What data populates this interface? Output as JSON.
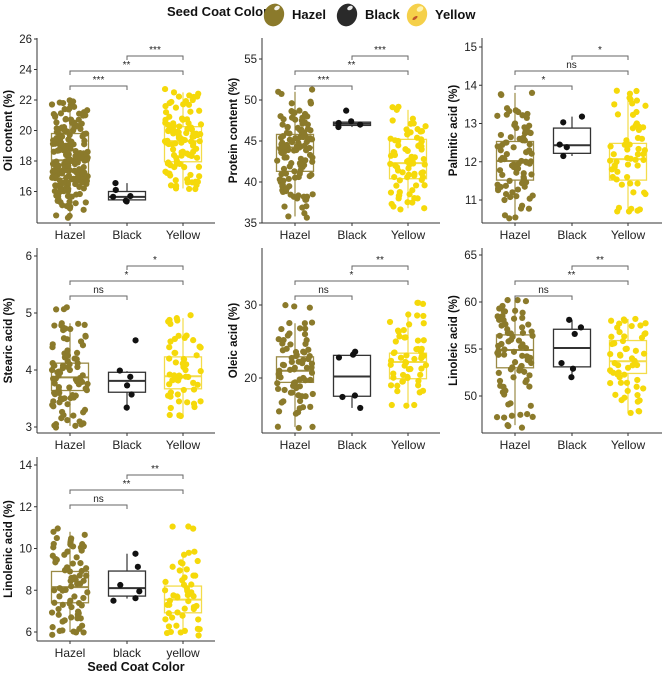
{
  "legend": {
    "title": "Seed Coat Color",
    "items": [
      {
        "label": "Hazel",
        "color": "#8B7A2B",
        "icon": "hazel-seed-icon"
      },
      {
        "label": "Black",
        "color": "#2A2A2A",
        "icon": "black-seed-icon"
      },
      {
        "label": "Yellow",
        "color": "#F2D21B",
        "icon": "yellow-seed-icon"
      }
    ]
  },
  "colors": {
    "Hazel": {
      "point": "#8B7A2B",
      "box": "#9A8A45"
    },
    "Black": {
      "point": "#111111",
      "box": "#333333"
    },
    "Yellow": {
      "point": "#F5D90A",
      "box": "#F3DC4A"
    },
    "bracket": "#666666",
    "axis": "#333333"
  },
  "chart_data": [
    {
      "type": "box",
      "id": "oil",
      "ylabel": "Oil content (%)",
      "xlabel": "",
      "categories": [
        "Hazel",
        "Black",
        "Yellow"
      ],
      "ylim": [
        14,
        26
      ],
      "yticks": [
        16,
        18,
        20,
        22,
        24,
        26
      ],
      "boxes": [
        {
          "group": "Hazel",
          "q1": 16.85,
          "median": 18.05,
          "q3": 19.8,
          "whisker_low": 14.4,
          "whisker_high": 21.9
        },
        {
          "group": "Black",
          "q1": 15.45,
          "median": 15.65,
          "q3": 16.0,
          "whisker_low": 15.4,
          "whisker_high": 16.55
        },
        {
          "group": "Yellow",
          "q1": 17.95,
          "median": 19.3,
          "q3": 20.25,
          "whisker_low": 16.2,
          "whisker_high": 22.5
        }
      ],
      "points": {
        "Hazel": [
          14.4,
          15.0,
          15.1,
          15.3,
          15.5,
          15.7,
          15.8,
          16.0,
          16.1,
          16.2,
          16.3,
          16.4,
          16.5,
          16.6,
          16.7,
          16.7,
          16.8,
          16.9,
          16.9,
          17.0,
          17.1,
          17.1,
          17.2,
          17.3,
          17.4,
          17.5,
          17.6,
          17.7,
          17.7,
          17.8,
          17.9,
          18.0,
          18.0,
          18.1,
          18.1,
          18.2,
          18.3,
          18.4,
          18.5,
          18.6,
          18.7,
          18.8,
          18.9,
          19.0,
          19.1,
          19.2,
          19.3,
          19.4,
          19.5,
          19.6,
          19.7,
          19.8,
          19.9,
          20.0,
          20.1,
          20.3,
          20.5,
          20.7,
          20.9,
          21.0,
          21.2,
          21.4,
          21.6,
          21.8,
          21.9
        ],
        "Black": [
          15.35,
          15.4,
          15.65,
          15.7,
          16.1,
          16.55
        ],
        "Yellow": [
          16.2,
          16.4,
          16.6,
          16.8,
          17.0,
          17.3,
          17.6,
          17.9,
          18.0,
          18.2,
          18.4,
          18.6,
          18.8,
          19.0,
          19.2,
          19.3,
          19.4,
          19.5,
          19.6,
          19.7,
          19.8,
          19.9,
          20.0,
          20.1,
          20.2,
          20.3,
          20.5,
          20.7,
          20.9,
          21.2,
          21.5,
          21.8,
          22.0,
          22.3,
          22.5
        ]
      },
      "comparisons": [
        {
          "from": "Hazel",
          "to": "Black",
          "label": "***"
        },
        {
          "from": "Hazel",
          "to": "Yellow",
          "label": "**"
        },
        {
          "from": "Black",
          "to": "Yellow",
          "label": "***"
        }
      ]
    },
    {
      "type": "box",
      "id": "protein",
      "ylabel": "Protein content (%)",
      "xlabel": "",
      "categories": [
        "Hazel",
        "Black",
        "Yellow"
      ],
      "ylim": [
        35,
        57
      ],
      "yticks": [
        35,
        40,
        45,
        50,
        55
      ],
      "boxes": [
        {
          "group": "Hazel",
          "q1": 41.3,
          "median": 44.2,
          "q3": 45.8,
          "whisker_low": 35.8,
          "whisker_high": 51.0
        },
        {
          "group": "Black",
          "q1": 46.9,
          "median": 47.1,
          "q3": 47.3,
          "whisker_low": 46.7,
          "whisker_high": 47.4
        },
        {
          "group": "Yellow",
          "q1": 40.4,
          "median": 42.3,
          "q3": 45.2,
          "whisker_low": 36.8,
          "whisker_high": 48.8
        }
      ],
      "points": {
        "Hazel": [
          35.8,
          37.0,
          38.0,
          38.2,
          38.5,
          39.0,
          39.5,
          40.0,
          40.3,
          40.6,
          41.0,
          41.3,
          41.6,
          42.0,
          42.3,
          42.6,
          43.0,
          43.3,
          43.6,
          43.9,
          44.1,
          44.2,
          44.4,
          44.6,
          44.8,
          45.0,
          45.2,
          45.4,
          45.6,
          45.8,
          46.0,
          46.3,
          46.6,
          47.0,
          47.3,
          47.6,
          48.0,
          48.3,
          48.7,
          49.6,
          51.0
        ],
        "Black": [
          46.7,
          47.0,
          47.2,
          47.4,
          48.7
        ],
        "Yellow": [
          36.8,
          37.5,
          38.0,
          38.5,
          39.0,
          39.6,
          40.2,
          40.6,
          41.0,
          41.4,
          41.8,
          42.2,
          42.5,
          42.8,
          43.2,
          43.6,
          44.0,
          44.5,
          45.0,
          45.4,
          45.8,
          46.2,
          46.8,
          47.5,
          48.8
        ]
      },
      "comparisons": [
        {
          "from": "Hazel",
          "to": "Black",
          "label": "***"
        },
        {
          "from": "Hazel",
          "to": "Yellow",
          "label": "**"
        },
        {
          "from": "Black",
          "to": "Yellow",
          "label": "***"
        }
      ]
    },
    {
      "type": "box",
      "id": "palmitic",
      "ylabel": "Palmitic acid (%)",
      "xlabel": "",
      "categories": [
        "Hazel",
        "Black",
        "Yellow"
      ],
      "ylim": [
        10.4,
        15.2
      ],
      "yticks": [
        11,
        12,
        13,
        14,
        15
      ],
      "boxes": [
        {
          "group": "Hazel",
          "q1": 11.52,
          "median": 12.02,
          "q3": 12.53,
          "whisker_low": 10.6,
          "whisker_high": 13.8
        },
        {
          "group": "Black",
          "q1": 12.22,
          "median": 12.43,
          "q3": 12.88,
          "whisker_low": 12.15,
          "whisker_high": 13.18
        },
        {
          "group": "Yellow",
          "q1": 11.52,
          "median": 12.07,
          "q3": 12.48,
          "whisker_low": 10.7,
          "whisker_high": 13.78
        }
      ],
      "points": {
        "Hazel": [
          10.6,
          10.85,
          11.0,
          11.1,
          11.2,
          11.3,
          11.4,
          11.5,
          11.6,
          11.7,
          11.8,
          11.9,
          12.0,
          12.05,
          12.1,
          12.2,
          12.3,
          12.4,
          12.5,
          12.6,
          12.7,
          12.8,
          12.9,
          13.0,
          13.2,
          13.3,
          13.4,
          13.8
        ],
        "Black": [
          12.15,
          12.38,
          12.45,
          13.03,
          13.18
        ],
        "Yellow": [
          10.7,
          10.72,
          11.2,
          11.4,
          11.6,
          11.8,
          11.9,
          12.0,
          12.1,
          12.2,
          12.3,
          12.4,
          12.6,
          12.9,
          13.0,
          13.3,
          13.5,
          13.6,
          13.78
        ]
      },
      "comparisons": [
        {
          "from": "Hazel",
          "to": "Black",
          "label": "*"
        },
        {
          "from": "Hazel",
          "to": "Yellow",
          "label": "ns"
        },
        {
          "from": "Black",
          "to": "Yellow",
          "label": "*"
        }
      ]
    },
    {
      "type": "box",
      "id": "stearic",
      "ylabel": "Stearic acid (%)",
      "xlabel": "",
      "categories": [
        "Hazel",
        "Black",
        "Yellow"
      ],
      "ylim": [
        2.95,
        6.05
      ],
      "yticks": [
        3,
        4,
        5,
        6
      ],
      "boxes": [
        {
          "group": "Hazel",
          "q1": 3.64,
          "median": 3.87,
          "q3": 4.12,
          "whisker_low": 3.02,
          "whisker_high": 4.82
        },
        {
          "group": "Black",
          "q1": 3.61,
          "median": 3.81,
          "q3": 3.96,
          "whisker_low": 3.34,
          "whisker_high": 3.98
        },
        {
          "group": "Yellow",
          "q1": 3.67,
          "median": 3.89,
          "q3": 4.23,
          "whisker_low": 3.21,
          "whisker_high": 4.91
        }
      ],
      "points": {
        "Hazel": [
          3.02,
          3.05,
          3.12,
          3.2,
          3.3,
          3.4,
          3.45,
          3.5,
          3.55,
          3.6,
          3.65,
          3.7,
          3.75,
          3.8,
          3.85,
          3.9,
          3.95,
          4.0,
          4.05,
          4.1,
          4.15,
          4.2,
          4.3,
          4.4,
          4.5,
          4.6,
          4.7,
          4.78,
          4.82,
          5.1
        ],
        "Black": [
          3.34,
          3.57,
          3.73,
          3.88,
          3.99,
          4.52
        ],
        "Yellow": [
          3.21,
          3.35,
          3.45,
          3.55,
          3.65,
          3.75,
          3.82,
          3.88,
          3.92,
          4.0,
          4.1,
          4.2,
          4.3,
          4.4,
          4.5,
          4.6,
          4.85,
          4.91
        ]
      },
      "comparisons": [
        {
          "from": "Hazel",
          "to": "Black",
          "label": "ns"
        },
        {
          "from": "Hazel",
          "to": "Yellow",
          "label": "*"
        },
        {
          "from": "Black",
          "to": "Yellow",
          "label": "*"
        }
      ]
    },
    {
      "type": "box",
      "id": "oleic",
      "ylabel": "Oleic acid (%)",
      "xlabel": "",
      "categories": [
        "Hazel",
        "Black",
        "Yellow"
      ],
      "ylim": [
        12.5,
        38
      ],
      "yticks": [
        20,
        30
      ],
      "boxes": [
        {
          "group": "Hazel",
          "q1": 19.4,
          "median": 21.0,
          "q3": 22.9,
          "whisker_low": 13.3,
          "whisker_high": 27.5
        },
        {
          "group": "Black",
          "q1": 17.5,
          "median": 20.2,
          "q3": 23.1,
          "whisker_low": 15.9,
          "whisker_high": 23.6
        },
        {
          "group": "Yellow",
          "q1": 19.9,
          "median": 22.2,
          "q3": 23.4,
          "whisker_low": 16.3,
          "whisker_high": 28.6
        }
      ],
      "points": {
        "Hazel": [
          13.3,
          15.3,
          16.0,
          16.8,
          17.5,
          18.0,
          18.5,
          19.0,
          19.4,
          19.8,
          20.2,
          20.6,
          21.0,
          21.4,
          21.8,
          22.2,
          22.6,
          23.0,
          23.5,
          24.0,
          24.6,
          25.2,
          26.0,
          26.8,
          27.5,
          29.8
        ],
        "Black": [
          15.9,
          17.4,
          17.6,
          22.8,
          23.2,
          23.6
        ],
        "Yellow": [
          16.3,
          18.2,
          19.0,
          19.5,
          20.0,
          20.6,
          21.2,
          21.8,
          22.2,
          22.6,
          23.0,
          23.5,
          24.0,
          25.0,
          25.7,
          26.5,
          27.5,
          28.5,
          30.3
        ]
      },
      "comparisons": [
        {
          "from": "Hazel",
          "to": "Black",
          "label": "ns"
        },
        {
          "from": "Hazel",
          "to": "Yellow",
          "label": "*"
        },
        {
          "from": "Black",
          "to": "Yellow",
          "label": "**"
        }
      ]
    },
    {
      "type": "box",
      "id": "linoleic",
      "ylabel": "Linoleic acid (%)",
      "xlabel": "",
      "categories": [
        "Hazel",
        "Black",
        "Yellow"
      ],
      "ylim": [
        46,
        65.5
      ],
      "yticks": [
        50,
        55,
        60,
        65
      ],
      "boxes": [
        {
          "group": "Hazel",
          "q1": 53.0,
          "median": 54.9,
          "q3": 56.5,
          "whisker_low": 46.9,
          "whisker_high": 60.2
        },
        {
          "group": "Black",
          "q1": 53.1,
          "median": 55.1,
          "q3": 57.1,
          "whisker_low": 52.0,
          "whisker_high": 58.1
        },
        {
          "group": "Yellow",
          "q1": 52.4,
          "median": 53.7,
          "q3": 55.9,
          "whisker_low": 48.2,
          "whisker_high": 58.2
        }
      ],
      "points": {
        "Hazel": [
          46.9,
          47.7,
          48.0,
          49.1,
          50.4,
          51.0,
          51.6,
          52.2,
          52.7,
          53.2,
          53.6,
          54.0,
          54.4,
          54.8,
          55.1,
          55.5,
          55.9,
          56.3,
          56.7,
          57.1,
          57.6,
          58.1,
          58.5,
          59.0,
          59.3,
          60.2
        ],
        "Black": [
          52.0,
          52.9,
          53.5,
          56.6,
          57.3,
          58.1
        ],
        "Yellow": [
          48.2,
          49.4,
          50.1,
          50.8,
          51.4,
          52.0,
          52.5,
          53.0,
          53.5,
          54.0,
          54.5,
          55.0,
          55.6,
          56.2,
          56.8,
          57.5,
          58.0,
          58.2
        ]
      },
      "comparisons": [
        {
          "from": "Hazel",
          "to": "Black",
          "label": "ns"
        },
        {
          "from": "Hazel",
          "to": "Yellow",
          "label": "**"
        },
        {
          "from": "Black",
          "to": "Yellow",
          "label": "**"
        }
      ]
    },
    {
      "type": "box",
      "id": "linolenic",
      "ylabel": "Linolenic acid (%)",
      "xlabel": "Seed Coat Color",
      "categories": [
        "Hazel",
        "black",
        "yellow"
      ],
      "ylim": [
        5.8,
        14.3
      ],
      "yticks": [
        6,
        8,
        10,
        12,
        14
      ],
      "boxes": [
        {
          "group": "Hazel",
          "q1": 7.4,
          "median": 8.15,
          "q3": 8.9,
          "whisker_low": 6.0,
          "whisker_high": 10.8
        },
        {
          "group": "Black",
          "q1": 7.72,
          "median": 8.1,
          "q3": 8.92,
          "whisker_low": 7.6,
          "whisker_high": 9.75
        },
        {
          "group": "Yellow",
          "q1": 6.92,
          "median": 7.55,
          "q3": 8.2,
          "whisker_low": 5.95,
          "whisker_high": 9.75
        }
      ],
      "points": {
        "Hazel": [
          5.98,
          6.02,
          6.3,
          6.5,
          6.7,
          6.9,
          7.1,
          7.3,
          7.5,
          7.7,
          7.9,
          8.1,
          8.3,
          8.5,
          8.7,
          8.9,
          9.1,
          9.3,
          9.5,
          9.7,
          9.9,
          10.1,
          10.3,
          10.5,
          10.8
        ],
        "Black": [
          7.5,
          7.62,
          7.95,
          8.25,
          9.12,
          9.75
        ],
        "Yellow": [
          5.95,
          5.98,
          6.3,
          6.6,
          6.9,
          7.1,
          7.3,
          7.5,
          7.7,
          7.9,
          8.1,
          8.4,
          8.7,
          9.0,
          9.4,
          9.7,
          11.05
        ]
      },
      "comparisons": [
        {
          "from": "Hazel",
          "to": "Black",
          "label": "ns"
        },
        {
          "from": "Hazel",
          "to": "Yellow",
          "label": "**"
        },
        {
          "from": "Black",
          "to": "Yellow",
          "label": "**"
        }
      ]
    }
  ]
}
